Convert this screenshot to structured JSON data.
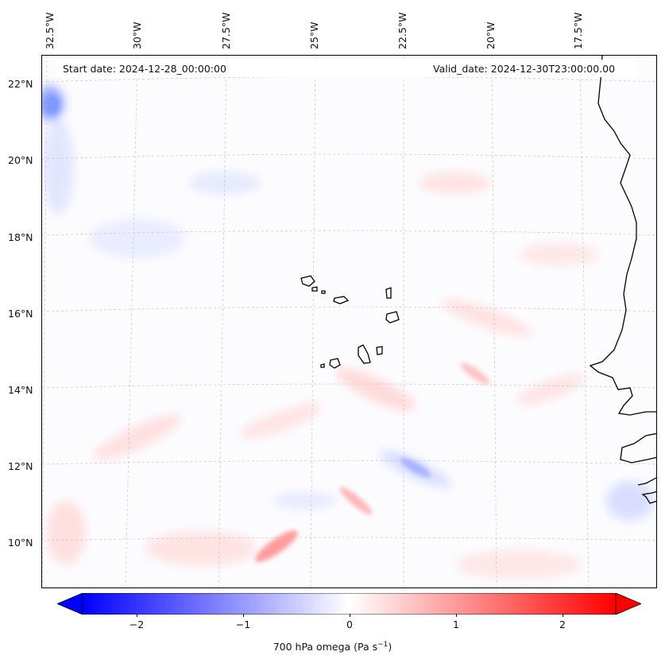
{
  "map": {
    "start_date": "Start date: 2024-12-28_00:00:00",
    "valid_date": "Valid_date: 2024-12-30T23:00:00.00",
    "lon_labels": [
      "32.5°W",
      "30°W",
      "27.5°W",
      "25°W",
      "22.5°W",
      "20°W",
      "17.5°W"
    ],
    "lat_labels": [
      "22°N",
      "20°N",
      "18°N",
      "16°N",
      "14°N",
      "12°N",
      "10°N"
    ],
    "colors": {
      "negative": "#0000ff",
      "zero": "#ffffff",
      "positive": "#ff0000",
      "coastline": "#000000"
    }
  },
  "colorbar": {
    "ticks": [
      "−2",
      "−1",
      "0",
      "1",
      "2"
    ],
    "label_main": "700 hPa omega (Pa s",
    "label_sup": "−1",
    "label_end": ")",
    "range": [
      -2.5,
      2.5
    ]
  }
}
